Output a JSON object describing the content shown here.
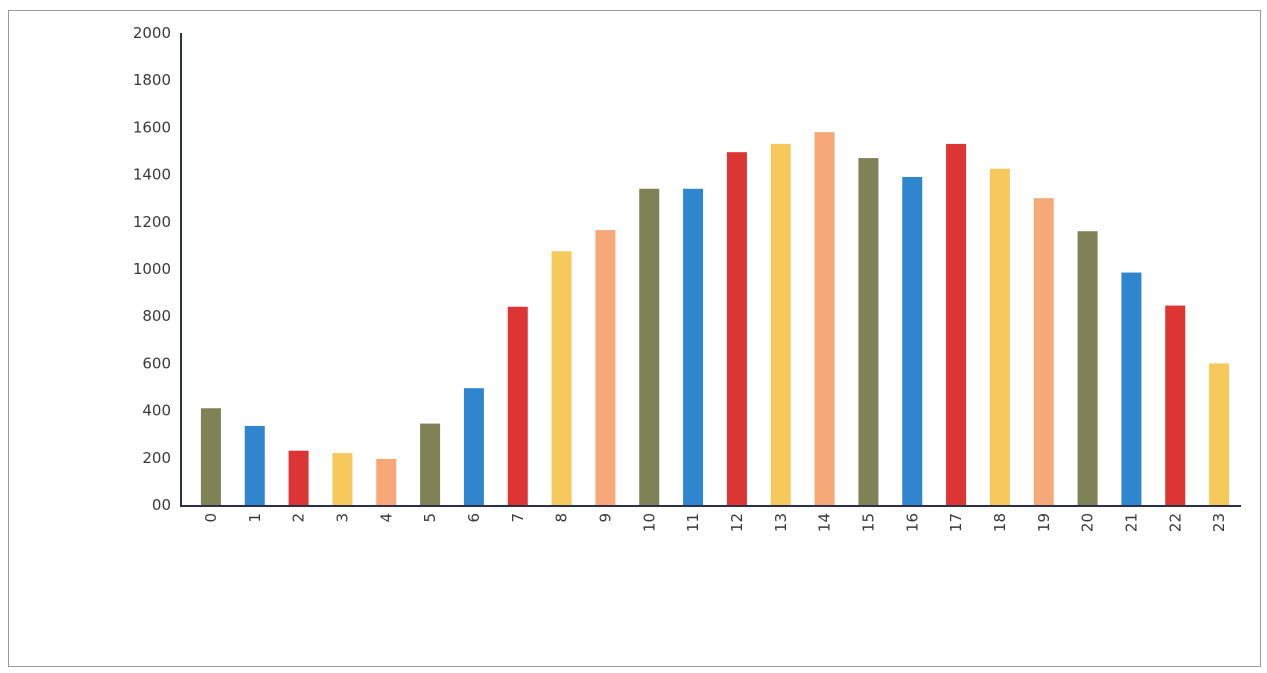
{
  "chart_data": {
    "type": "bar",
    "title": "",
    "xlabel": "",
    "ylabel": "",
    "categories": [
      "0",
      "1",
      "2",
      "3",
      "4",
      "5",
      "6",
      "7",
      "8",
      "9",
      "10",
      "11",
      "12",
      "13",
      "14",
      "15",
      "16",
      "17",
      "18",
      "19",
      "20",
      "21",
      "22",
      "23"
    ],
    "values": [
      410,
      335,
      230,
      220,
      195,
      345,
      495,
      840,
      1075,
      1165,
      1340,
      1340,
      1495,
      1530,
      1580,
      1470,
      1390,
      1530,
      1425,
      1300,
      1160,
      985,
      845,
      600
    ],
    "bar_colors": [
      "#7f8255",
      "#2f86cf",
      "#dd3434",
      "#f7c85c",
      "#f7a878",
      "#7f8255",
      "#2f86cf",
      "#dd3434",
      "#f7c85c",
      "#f7a878",
      "#7f8255",
      "#2f86cf",
      "#dd3434",
      "#f7c85c",
      "#f7a878",
      "#7f8255",
      "#2f86cf",
      "#dd3434",
      "#f7c85c",
      "#f7a878",
      "#7f8255",
      "#2f86cf",
      "#dd3434",
      "#f7c85c"
    ],
    "yticks": [
      "00",
      "200",
      "400",
      "600",
      "800",
      "1000",
      "1200",
      "1400",
      "1600",
      "1800",
      "2000"
    ],
    "ylim": [
      0,
      2000
    ],
    "grid": false,
    "legend": "none"
  }
}
